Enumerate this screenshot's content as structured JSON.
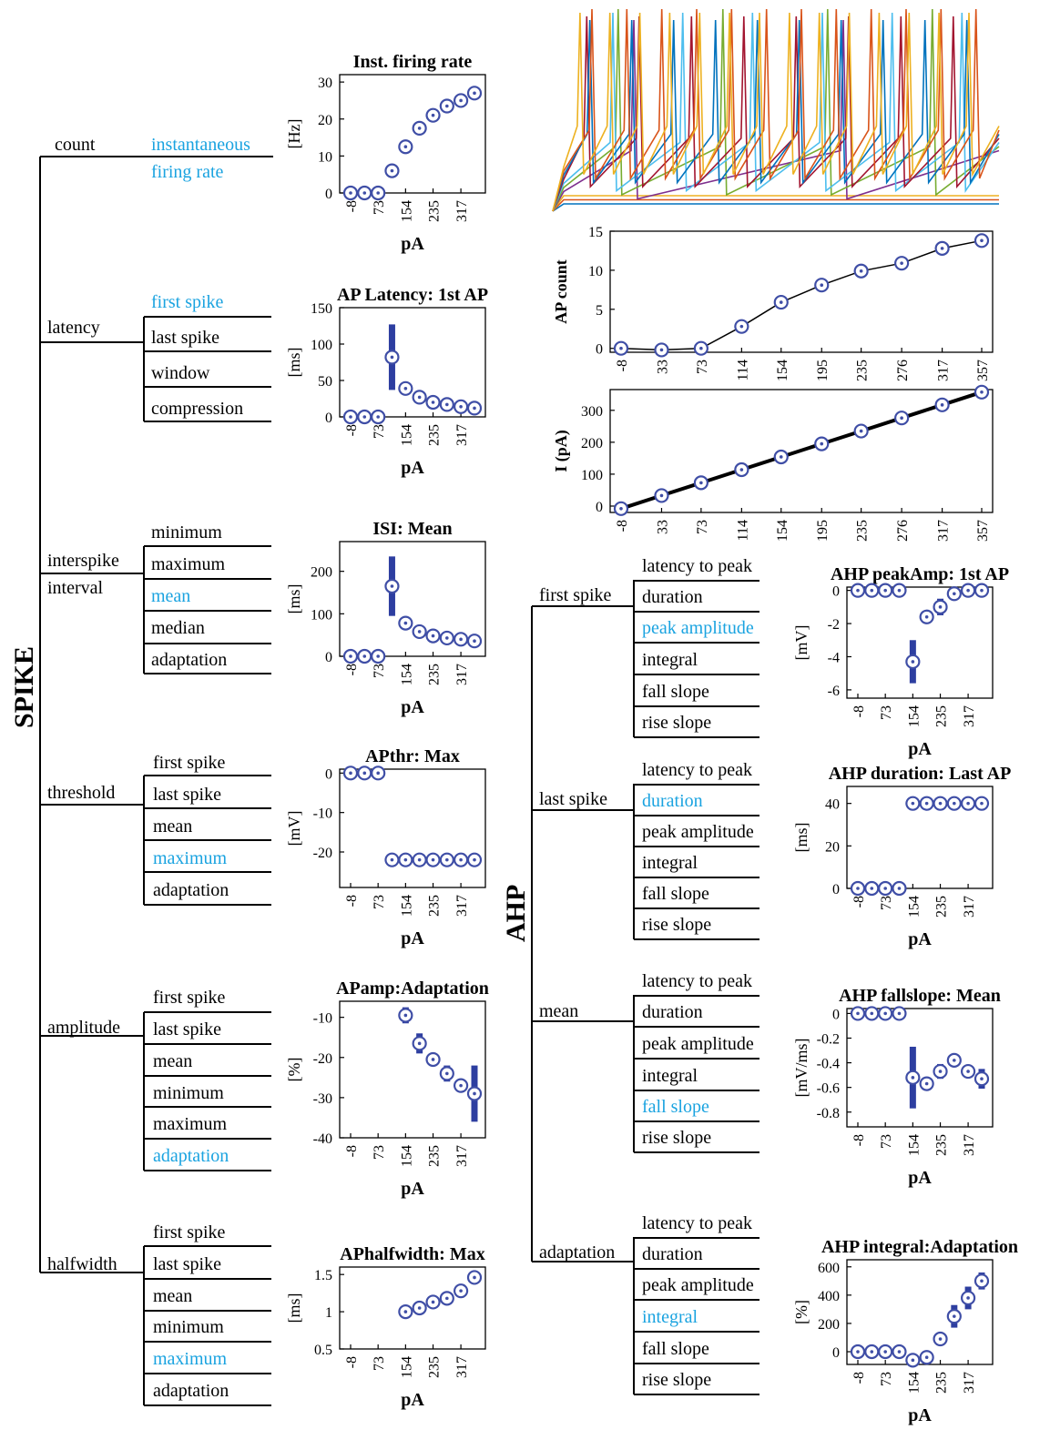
{
  "colors": {
    "ink": "#000000",
    "highlight": "#1aa3e0",
    "marker": "#3f4ea6",
    "error_bar": "#2d3ea0",
    "axis": "#000000"
  },
  "spike": {
    "title": "SPIKE",
    "groups": [
      {
        "label": "count",
        "items": [
          {
            "text": "instantaneous\nfiring rate",
            "hl": true
          }
        ]
      },
      {
        "label": "latency",
        "items": [
          {
            "text": "first spike",
            "hl": true
          },
          {
            "text": "last spike",
            "hl": false
          },
          {
            "text": "window",
            "hl": false
          },
          {
            "text": "compression",
            "hl": false
          }
        ]
      },
      {
        "label": "interspike\ninterval",
        "items": [
          {
            "text": "minimum",
            "hl": false
          },
          {
            "text": "maximum",
            "hl": false
          },
          {
            "text": "mean",
            "hl": true
          },
          {
            "text": "median",
            "hl": false
          },
          {
            "text": "adaptation",
            "hl": false
          }
        ]
      },
      {
        "label": "threshold",
        "items": [
          {
            "text": "first spike",
            "hl": false
          },
          {
            "text": "last spike",
            "hl": false
          },
          {
            "text": "mean",
            "hl": false
          },
          {
            "text": "maximum",
            "hl": true
          },
          {
            "text": "adaptation",
            "hl": false
          }
        ]
      },
      {
        "label": "amplitude",
        "items": [
          {
            "text": "first spike",
            "hl": false
          },
          {
            "text": "last spike",
            "hl": false
          },
          {
            "text": "mean",
            "hl": false
          },
          {
            "text": "minimum",
            "hl": false
          },
          {
            "text": "maximum",
            "hl": false
          },
          {
            "text": "adaptation",
            "hl": true
          }
        ]
      },
      {
        "label": "halfwidth",
        "items": [
          {
            "text": "first spike",
            "hl": false
          },
          {
            "text": "last spike",
            "hl": false
          },
          {
            "text": "mean",
            "hl": false
          },
          {
            "text": "minimum",
            "hl": false
          },
          {
            "text": "maximum",
            "hl": true
          },
          {
            "text": "adaptation",
            "hl": false
          }
        ]
      }
    ]
  },
  "ahp": {
    "title": "AHP",
    "groups": [
      {
        "label": "first spike",
        "items": [
          {
            "text": "latency to peak",
            "hl": false
          },
          {
            "text": "duration",
            "hl": false
          },
          {
            "text": "peak amplitude",
            "hl": true
          },
          {
            "text": "integral",
            "hl": false
          },
          {
            "text": "fall slope",
            "hl": false
          },
          {
            "text": "rise slope",
            "hl": false
          }
        ]
      },
      {
        "label": "last spike",
        "items": [
          {
            "text": "latency to peak",
            "hl": false
          },
          {
            "text": "duration",
            "hl": true
          },
          {
            "text": "peak amplitude",
            "hl": false
          },
          {
            "text": "integral",
            "hl": false
          },
          {
            "text": "fall slope",
            "hl": false
          },
          {
            "text": "rise slope",
            "hl": false
          }
        ]
      },
      {
        "label": "mean",
        "items": [
          {
            "text": "latency to peak",
            "hl": false
          },
          {
            "text": "duration",
            "hl": false
          },
          {
            "text": "peak amplitude",
            "hl": false
          },
          {
            "text": "integral",
            "hl": false
          },
          {
            "text": "fall slope",
            "hl": true
          },
          {
            "text": "rise slope",
            "hl": false
          }
        ]
      },
      {
        "label": "adaptation",
        "items": [
          {
            "text": "latency to peak",
            "hl": false
          },
          {
            "text": "duration",
            "hl": false
          },
          {
            "text": "peak amplitude",
            "hl": false
          },
          {
            "text": "integral",
            "hl": true
          },
          {
            "text": "fall slope",
            "hl": false
          },
          {
            "text": "rise slope",
            "hl": false
          }
        ]
      }
    ]
  },
  "traces": {
    "colors": [
      "#0072bd",
      "#d95319",
      "#edb120",
      "#7e2f8e",
      "#77ac30",
      "#4dbeee",
      "#a2142f"
    ]
  },
  "chart_data": [
    {
      "type": "scatter",
      "title": "Inst. firing rate",
      "ylabel": "[Hz]",
      "xlabel": "pA",
      "x_ticks": [
        "-8",
        "73",
        "154",
        "235",
        "317"
      ],
      "y_ticks": [
        "0",
        "10",
        "20",
        "30"
      ],
      "ylim": [
        0,
        32
      ],
      "x": [
        -8,
        33,
        73,
        114,
        154,
        195,
        235,
        276,
        317,
        357
      ],
      "values": [
        0,
        0,
        0,
        6,
        12.5,
        17.5,
        21,
        23.5,
        25,
        27
      ],
      "errors": [
        0,
        0,
        0,
        1.5,
        1,
        0.5,
        0.5,
        0.5,
        0.5,
        0.5
      ]
    },
    {
      "type": "scatter",
      "title": "AP Latency: 1st AP",
      "ylabel": "[ms]",
      "xlabel": "pA",
      "x_ticks": [
        "-8",
        "73",
        "154",
        "235",
        "317"
      ],
      "y_ticks": [
        "0",
        "50",
        "100",
        "150"
      ],
      "ylim": [
        0,
        150
      ],
      "x": [
        -8,
        33,
        73,
        114,
        154,
        195,
        235,
        276,
        317,
        357
      ],
      "values": [
        0,
        0,
        0,
        82,
        39,
        27,
        20,
        17,
        14,
        12
      ],
      "errors": [
        0,
        0,
        0,
        45,
        5,
        3,
        2,
        2,
        1,
        1
      ]
    },
    {
      "type": "scatter",
      "title": "ISI: Mean",
      "ylabel": "[ms]",
      "xlabel": "pA",
      "x_ticks": [
        "-8",
        "73",
        "154",
        "235",
        "317"
      ],
      "y_ticks": [
        "0",
        "100",
        "200"
      ],
      "ylim": [
        0,
        270
      ],
      "x": [
        -8,
        33,
        73,
        114,
        154,
        195,
        235,
        276,
        317,
        357
      ],
      "values": [
        0,
        0,
        0,
        165,
        78,
        58,
        48,
        43,
        40,
        36
      ],
      "errors": [
        0,
        0,
        0,
        70,
        6,
        4,
        3,
        3,
        2,
        2
      ]
    },
    {
      "type": "scatter",
      "title": "APthr: Max",
      "ylabel": "[mV]",
      "xlabel": "pA",
      "x_ticks": [
        "-8",
        "73",
        "154",
        "235",
        "317"
      ],
      "y_ticks": [
        "0",
        "-10",
        "-20"
      ],
      "ylim": [
        -29,
        1
      ],
      "x": [
        -8,
        33,
        73,
        114,
        154,
        195,
        235,
        276,
        317,
        357
      ],
      "values": [
        0,
        0,
        0,
        -22,
        -22,
        -22,
        -22,
        -22,
        -22,
        -22
      ],
      "errors": [
        0,
        0,
        0,
        1.2,
        1.2,
        1.2,
        1.2,
        1.2,
        1.5,
        1.2
      ]
    },
    {
      "type": "scatter",
      "title": "APamp:Adaptation",
      "ylabel": "[%]",
      "xlabel": "pA",
      "x_ticks": [
        "-8",
        "73",
        "154",
        "235",
        "317"
      ],
      "y_ticks": [
        "-10",
        "-20",
        "-30",
        "-40"
      ],
      "ylim": [
        -40,
        -6
      ],
      "x": [
        154,
        195,
        235,
        276,
        317,
        357
      ],
      "values": [
        -9.5,
        -16.5,
        -20.5,
        -24,
        -27,
        -29
      ],
      "errors": [
        2,
        2.5,
        1.5,
        2,
        1.5,
        7
      ]
    },
    {
      "type": "scatter",
      "title": "APhalfwidth: Max",
      "ylabel": "[ms]",
      "xlabel": "pA",
      "x_ticks": [
        "-8",
        "73",
        "154",
        "235",
        "317"
      ],
      "y_ticks": [
        "0.5",
        "1",
        "1.5"
      ],
      "ylim": [
        0.5,
        1.6
      ],
      "x": [
        154,
        195,
        235,
        276,
        317,
        357
      ],
      "values": [
        1.0,
        1.05,
        1.13,
        1.18,
        1.28,
        1.46
      ],
      "errors": [
        0.02,
        0.03,
        0.03,
        0.03,
        0.03,
        0.03
      ]
    },
    {
      "type": "line",
      "title": "",
      "ylabel": "AP count",
      "xlabel": "",
      "x_ticks": [
        "-8",
        "33",
        "73",
        "114",
        "154",
        "195",
        "235",
        "276",
        "317",
        "357"
      ],
      "y_ticks": [
        "0",
        "5",
        "10",
        "15"
      ],
      "ylim": [
        -0.5,
        15
      ],
      "x": [
        -8,
        33,
        73,
        114,
        154,
        195,
        235,
        276,
        317,
        357
      ],
      "values": [
        0,
        -0.2,
        0,
        2.8,
        5.9,
        8.1,
        9.9,
        10.9,
        12.8,
        13.8
      ],
      "errors": [
        0,
        0,
        0,
        0.6,
        0.3,
        0.7,
        0.3,
        0.3,
        0.6,
        0.5
      ]
    },
    {
      "type": "line",
      "title": "",
      "ylabel": "I (pA)",
      "xlabel": "",
      "x_ticks": [
        "-8",
        "33",
        "73",
        "114",
        "154",
        "195",
        "235",
        "276",
        "317",
        "357"
      ],
      "y_ticks": [
        "0",
        "100",
        "200",
        "300"
      ],
      "ylim": [
        -20,
        365
      ],
      "x": [
        -8,
        33,
        73,
        114,
        154,
        195,
        235,
        276,
        317,
        357
      ],
      "values": [
        -8,
        33,
        73,
        114,
        154,
        195,
        235,
        276,
        317,
        357
      ],
      "errors": [
        0,
        0,
        0,
        0,
        0,
        0,
        0,
        0,
        0,
        0
      ]
    },
    {
      "type": "scatter",
      "title": "AHP peakAmp: 1st AP",
      "ylabel": "[mV]",
      "xlabel": "pA",
      "x_ticks": [
        "-8",
        "73",
        "154",
        "235",
        "317"
      ],
      "y_ticks": [
        "0",
        "-2",
        "-4",
        "-6"
      ],
      "ylim": [
        -6.5,
        0.2
      ],
      "x": [
        -8,
        33,
        73,
        114,
        154,
        195,
        235,
        276,
        317,
        357
      ],
      "values": [
        0,
        0,
        0,
        0,
        -4.3,
        -1.6,
        -1.0,
        -0.2,
        0,
        0
      ],
      "errors": [
        0,
        0,
        0,
        0,
        1.3,
        0.4,
        0.5,
        0.2,
        0.1,
        0.1
      ]
    },
    {
      "type": "scatter",
      "title": "AHP duration: Last AP",
      "ylabel": "[ms]",
      "xlabel": "pA",
      "x_ticks": [
        "-8",
        "73",
        "154",
        "235",
        "317"
      ],
      "y_ticks": [
        "0",
        "20",
        "40"
      ],
      "ylim": [
        0,
        48
      ],
      "x": [
        -8,
        33,
        73,
        114,
        154,
        195,
        235,
        276,
        317,
        357
      ],
      "values": [
        0,
        0,
        0,
        0,
        40,
        40,
        40,
        40,
        40,
        40
      ],
      "errors": [
        0,
        0,
        0,
        0,
        0.5,
        0.5,
        0.5,
        0.5,
        0.5,
        0.5
      ]
    },
    {
      "type": "scatter",
      "title": "AHP fallslope: Mean",
      "ylabel": "[mV/ms]",
      "xlabel": "pA",
      "x_ticks": [
        "-8",
        "73",
        "154",
        "235",
        "317"
      ],
      "y_ticks": [
        "0",
        "-0.2",
        "-0.4",
        "-0.6",
        "-0.8"
      ],
      "ylim": [
        -0.92,
        0.04
      ],
      "x": [
        -8,
        33,
        73,
        114,
        154,
        195,
        235,
        276,
        317,
        357
      ],
      "values": [
        0,
        0,
        0,
        0,
        -0.52,
        -0.57,
        -0.47,
        -0.38,
        -0.47,
        -0.53
      ],
      "errors": [
        0,
        0,
        0,
        0,
        0.25,
        0.05,
        0.06,
        0.05,
        0.05,
        0.08
      ]
    },
    {
      "type": "scatter",
      "title": "AHP integral:Adaptation",
      "ylabel": "[%]",
      "xlabel": "pA",
      "x_ticks": [
        "-8",
        "73",
        "154",
        "235",
        "317"
      ],
      "y_ticks": [
        "600",
        "400",
        "200",
        "0"
      ],
      "ylim": [
        -90,
        650
      ],
      "x": [
        -8,
        33,
        73,
        114,
        154,
        195,
        235,
        276,
        317,
        357
      ],
      "values": [
        0,
        0,
        0,
        0,
        -60,
        -40,
        90,
        250,
        380,
        500
      ],
      "errors": [
        0,
        0,
        0,
        0,
        10,
        10,
        30,
        80,
        80,
        60
      ]
    }
  ]
}
